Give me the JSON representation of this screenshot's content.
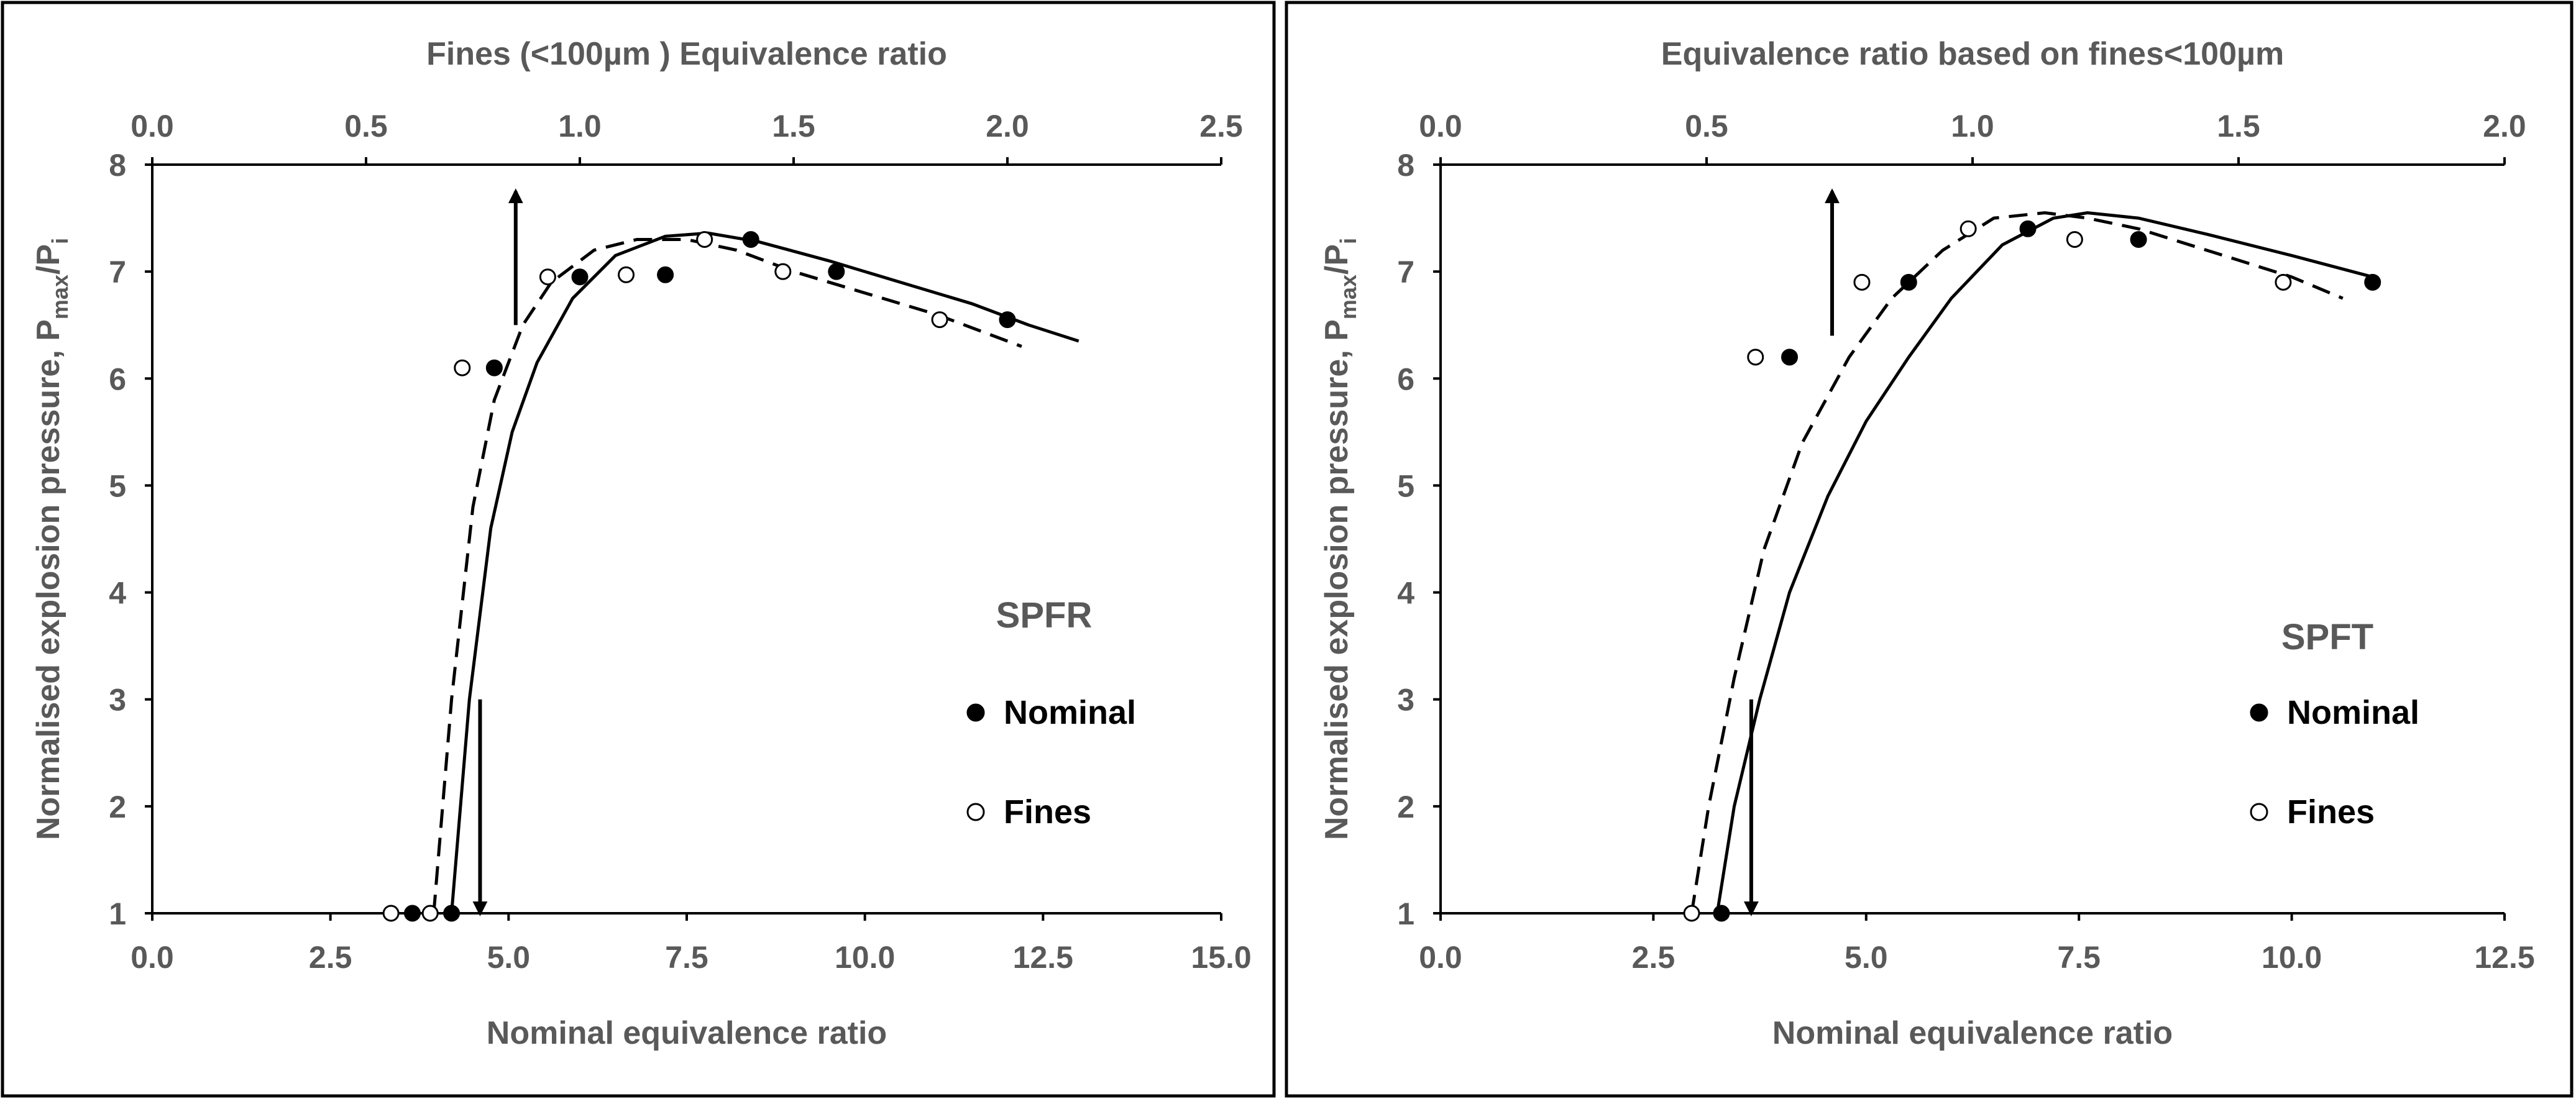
{
  "chart_data": [
    {
      "type": "scatter",
      "panel_label": "SPFR",
      "title": "",
      "xlabel": "Nominal equivalence ratio",
      "x2label": "Fines (<100µm ) Equivalence ratio",
      "ylabel_parts": {
        "main": "Normalised explosion pressure, P",
        "sub1": "max",
        "mid": "/P",
        "sub2": "i"
      },
      "xlim": [
        0,
        15
      ],
      "x2lim": [
        0,
        2.5
      ],
      "ylim": [
        1,
        8
      ],
      "x_ticks": [
        "0.0",
        "2.5",
        "5.0",
        "7.5",
        "10.0",
        "12.5",
        "15.0"
      ],
      "x2_ticks": [
        "0.0",
        "0.5",
        "1.0",
        "1.5",
        "2.0",
        "2.5"
      ],
      "y_ticks": [
        "1",
        "2",
        "3",
        "4",
        "5",
        "6",
        "7",
        "8"
      ],
      "legend": {
        "nominal": "Nominal",
        "fines": "Fines"
      },
      "series": [
        {
          "name": "Nominal",
          "marker": "filled",
          "x": [
            3.65,
            4.2,
            4.8,
            6.0,
            7.2,
            8.4,
            9.6,
            12.0
          ],
          "y": [
            1.0,
            1.0,
            6.1,
            6.95,
            6.97,
            7.3,
            7.0,
            6.55
          ]
        },
        {
          "name": "Fines",
          "marker": "open",
          "x": [
            3.35,
            3.9,
            4.35,
            5.55,
            6.65,
            7.75,
            8.85,
            11.05
          ],
          "y": [
            1.0,
            1.0,
            6.1,
            6.95,
            6.97,
            7.3,
            7.0,
            6.55
          ]
        },
        {
          "name": "Nominal fit",
          "line": "solid",
          "x": [
            4.2,
            4.45,
            4.75,
            5.05,
            5.4,
            5.9,
            6.5,
            7.2,
            7.8,
            8.5,
            9.5,
            10.5,
            11.5,
            12.3,
            13.0
          ],
          "y": [
            1.0,
            3.0,
            4.6,
            5.5,
            6.15,
            6.75,
            7.15,
            7.33,
            7.36,
            7.28,
            7.1,
            6.9,
            6.7,
            6.5,
            6.35
          ]
        },
        {
          "name": "Fines fit",
          "line": "dashed",
          "x": [
            3.95,
            4.2,
            4.5,
            4.8,
            5.2,
            5.6,
            6.2,
            6.8,
            7.5,
            8.2,
            9.0,
            10.0,
            11.0,
            12.2
          ],
          "y": [
            1.0,
            3.0,
            4.8,
            5.8,
            6.5,
            6.9,
            7.2,
            7.3,
            7.3,
            7.2,
            7.0,
            6.8,
            6.6,
            6.3
          ]
        }
      ],
      "arrows": [
        {
          "from": [
            5.1,
            6.5
          ],
          "to": [
            5.1,
            7.75
          ]
        },
        {
          "from": [
            4.6,
            3.0
          ],
          "to": [
            4.6,
            1.0
          ]
        }
      ]
    },
    {
      "type": "scatter",
      "panel_label": "SPFT",
      "title": "",
      "xlabel": "Nominal equivalence ratio",
      "x2label": "Equivalence ratio based on fines<100µm",
      "ylabel_parts": {
        "main": "Normalised explosion pressure, P",
        "sub1": "max",
        "mid": "/P",
        "sub2": "i"
      },
      "xlim": [
        0,
        12.5
      ],
      "x2lim": [
        0,
        2.0
      ],
      "ylim": [
        1,
        8
      ],
      "x_ticks": [
        "0.0",
        "2.5",
        "5.0",
        "7.5",
        "10.0",
        "12.5"
      ],
      "x2_ticks": [
        "0.0",
        "0.5",
        "1.0",
        "1.5",
        "2.0"
      ],
      "y_ticks": [
        "1",
        "2",
        "3",
        "4",
        "5",
        "6",
        "7",
        "8"
      ],
      "legend": {
        "nominal": "Nominal",
        "fines": "Fines"
      },
      "series": [
        {
          "name": "Nominal",
          "marker": "filled",
          "x": [
            3.3,
            4.1,
            5.5,
            6.9,
            8.2,
            10.95
          ],
          "y": [
            1.0,
            6.2,
            6.9,
            7.4,
            7.3,
            6.9
          ]
        },
        {
          "name": "Fines",
          "marker": "open",
          "x": [
            2.95,
            3.7,
            4.95,
            6.2,
            7.45,
            9.9
          ],
          "y": [
            1.0,
            6.2,
            6.9,
            7.4,
            7.3,
            6.9
          ]
        },
        {
          "name": "Nominal fit",
          "line": "solid",
          "x": [
            3.25,
            3.45,
            3.75,
            4.1,
            4.55,
            5.0,
            5.5,
            6.0,
            6.6,
            7.2,
            7.6,
            8.2,
            9.0,
            10.0,
            10.95
          ],
          "y": [
            1.0,
            2.0,
            3.0,
            4.0,
            4.9,
            5.6,
            6.2,
            6.75,
            7.25,
            7.5,
            7.55,
            7.5,
            7.35,
            7.15,
            6.95
          ]
        },
        {
          "name": "Fines fit",
          "line": "dashed",
          "x": [
            2.95,
            3.15,
            3.45,
            3.8,
            4.25,
            4.8,
            5.3,
            5.9,
            6.5,
            7.1,
            7.6,
            8.2,
            9.0,
            10.0,
            10.6
          ],
          "y": [
            1.0,
            2.0,
            3.2,
            4.4,
            5.4,
            6.2,
            6.75,
            7.2,
            7.5,
            7.55,
            7.5,
            7.4,
            7.2,
            6.95,
            6.75
          ]
        }
      ],
      "arrows": [
        {
          "from": [
            4.6,
            6.4
          ],
          "to": [
            4.6,
            7.75
          ]
        },
        {
          "from": [
            3.65,
            3.0
          ],
          "to": [
            3.65,
            1.0
          ]
        }
      ]
    }
  ]
}
